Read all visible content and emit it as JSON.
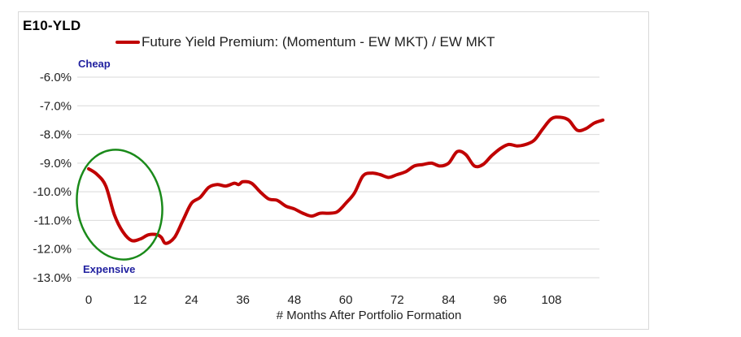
{
  "chart_data": {
    "type": "line",
    "title": "E10-YLD",
    "xlabel": "# Months After Portfolio Formation",
    "ylabel": "",
    "xlim": [
      -2,
      120
    ],
    "ylim": [
      -13,
      -6
    ],
    "xticks": [
      0,
      12,
      24,
      36,
      48,
      60,
      72,
      84,
      96,
      108
    ],
    "xtick_labels": [
      "0",
      "12",
      "24",
      "36",
      "48",
      "60",
      "72",
      "84",
      "96",
      "108"
    ],
    "yticks": [
      -6,
      -7,
      -8,
      -9,
      -10,
      -11,
      -12,
      -13
    ],
    "ytick_labels": [
      "-6.0%",
      "-7.0%",
      "-8.0%",
      "-9.0%",
      "-10.0%",
      "-11.0%",
      "-12.0%",
      "-13.0%"
    ],
    "grid": true,
    "legend_position": "top",
    "annotations": {
      "top": "Cheap",
      "bottom": "Expensive"
    },
    "series": [
      {
        "name": "Future Yield Premium: (Momentum - EW MKT) / EW MKT",
        "color": "#c00000",
        "x": [
          0,
          2,
          4,
          6,
          8,
          10,
          12,
          14,
          16,
          17,
          18,
          20,
          22,
          24,
          26,
          28,
          30,
          32,
          34,
          35,
          36,
          38,
          40,
          42,
          44,
          46,
          48,
          50,
          52,
          54,
          56,
          58,
          60,
          62,
          64,
          66,
          68,
          70,
          72,
          74,
          76,
          78,
          80,
          82,
          84,
          86,
          88,
          90,
          92,
          94,
          96,
          98,
          100,
          102,
          104,
          106,
          108,
          110,
          112,
          114,
          116,
          118,
          120
        ],
        "y": [
          -9.2,
          -9.4,
          -9.8,
          -10.8,
          -11.4,
          -11.7,
          -11.65,
          -11.5,
          -11.5,
          -11.6,
          -11.8,
          -11.6,
          -11.0,
          -10.4,
          -10.2,
          -9.85,
          -9.75,
          -9.8,
          -9.7,
          -9.75,
          -9.65,
          -9.7,
          -10.0,
          -10.25,
          -10.3,
          -10.5,
          -10.6,
          -10.75,
          -10.85,
          -10.75,
          -10.75,
          -10.7,
          -10.4,
          -10.05,
          -9.45,
          -9.35,
          -9.4,
          -9.5,
          -9.4,
          -9.3,
          -9.1,
          -9.05,
          -9.0,
          -9.1,
          -9.0,
          -8.6,
          -8.7,
          -9.1,
          -9.05,
          -8.75,
          -8.5,
          -8.35,
          -8.4,
          -8.35,
          -8.2,
          -7.8,
          -7.45,
          -7.4,
          -7.5,
          -7.85,
          -7.8,
          -7.6,
          -7.5
        ]
      }
    ]
  }
}
